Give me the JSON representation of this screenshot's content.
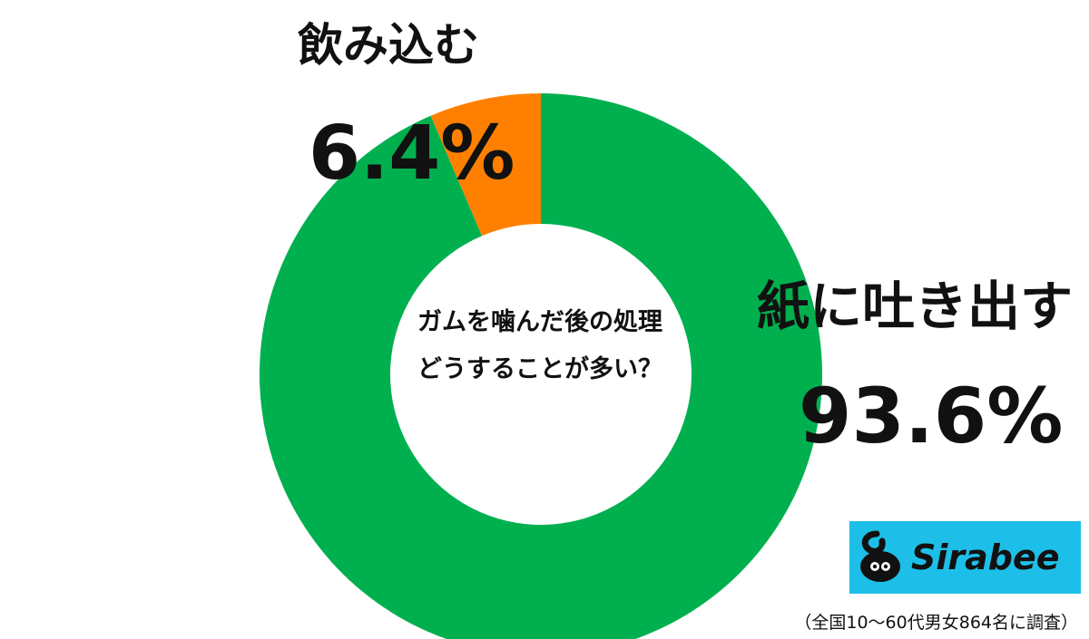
{
  "chart_data": {
    "type": "pie",
    "title": "ガムを噛んだ後の処理どうすることが多い？",
    "title_lines": [
      "ガムを噛んだ後の処理",
      "どうすることが多い？"
    ],
    "slices": [
      {
        "label": "紙に吐き出す",
        "value": 93.6,
        "value_label": "93.6%",
        "color": "#00b04f"
      },
      {
        "label": "飲み込む",
        "value": 6.4,
        "value_label": "6.4%",
        "color": "#ff8000"
      }
    ],
    "style": "donut"
  },
  "logo": {
    "text": "Sirabee",
    "background": "#1dbfe8"
  },
  "footnote": "（全国10〜60代男女864名に調査）"
}
